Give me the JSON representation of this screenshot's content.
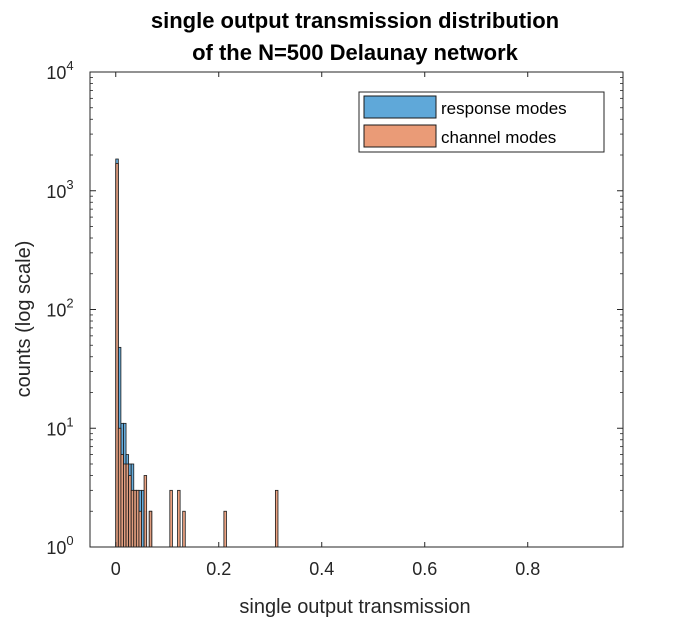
{
  "chart_data": {
    "type": "bar",
    "title": [
      "single output transmission distribution",
      "of the N=500 Delaunay network"
    ],
    "xlabel": "single output transmission",
    "ylabel": "counts (log scale)",
    "xlim": [
      -0.05,
      0.985
    ],
    "xticks": [
      0,
      0.2,
      0.4,
      0.6,
      0.8
    ],
    "xtick_labels": [
      "0",
      "0.2",
      "0.4",
      "0.6",
      "0.8"
    ],
    "yscale": "log",
    "ylim": [
      1,
      10000
    ],
    "ytick_exponents": [
      "0",
      "1",
      "2",
      "3",
      "4"
    ],
    "ytick_base": "10",
    "legend": {
      "location": "top-right",
      "entries": [
        "response modes",
        "channel modes"
      ]
    },
    "colors": {
      "response": "#5fa8d9",
      "channel": "#ea9b77",
      "edge": "#1a1a1a"
    },
    "bin_width": 0.005,
    "series": [
      {
        "name": "response modes",
        "bins": [
          {
            "x": 0.0025,
            "count": 1850
          },
          {
            "x": 0.0075,
            "count": 48
          },
          {
            "x": 0.0125,
            "count": 11
          },
          {
            "x": 0.0175,
            "count": 11
          },
          {
            "x": 0.0225,
            "count": 6
          },
          {
            "x": 0.0275,
            "count": 5
          },
          {
            "x": 0.0325,
            "count": 5
          },
          {
            "x": 0.0375,
            "count": 3
          },
          {
            "x": 0.0425,
            "count": 3
          },
          {
            "x": 0.0475,
            "count": 3
          },
          {
            "x": 0.0525,
            "count": 3
          },
          {
            "x": 0.0575,
            "count": 2
          },
          {
            "x": 0.0675,
            "count": 2
          }
        ]
      },
      {
        "name": "channel modes",
        "bins": [
          {
            "x": 0.0025,
            "count": 1700
          },
          {
            "x": 0.0075,
            "count": 10
          },
          {
            "x": 0.0125,
            "count": 6
          },
          {
            "x": 0.0175,
            "count": 5
          },
          {
            "x": 0.0225,
            "count": 5
          },
          {
            "x": 0.0275,
            "count": 4
          },
          {
            "x": 0.0325,
            "count": 3
          },
          {
            "x": 0.0375,
            "count": 3
          },
          {
            "x": 0.0425,
            "count": 3
          },
          {
            "x": 0.0475,
            "count": 2
          },
          {
            "x": 0.0575,
            "count": 4
          },
          {
            "x": 0.0675,
            "count": 2
          },
          {
            "x": 0.1075,
            "count": 3
          },
          {
            "x": 0.1225,
            "count": 3
          },
          {
            "x": 0.1325,
            "count": 2
          },
          {
            "x": 0.2125,
            "count": 2
          },
          {
            "x": 0.3125,
            "count": 3
          }
        ]
      }
    ]
  }
}
